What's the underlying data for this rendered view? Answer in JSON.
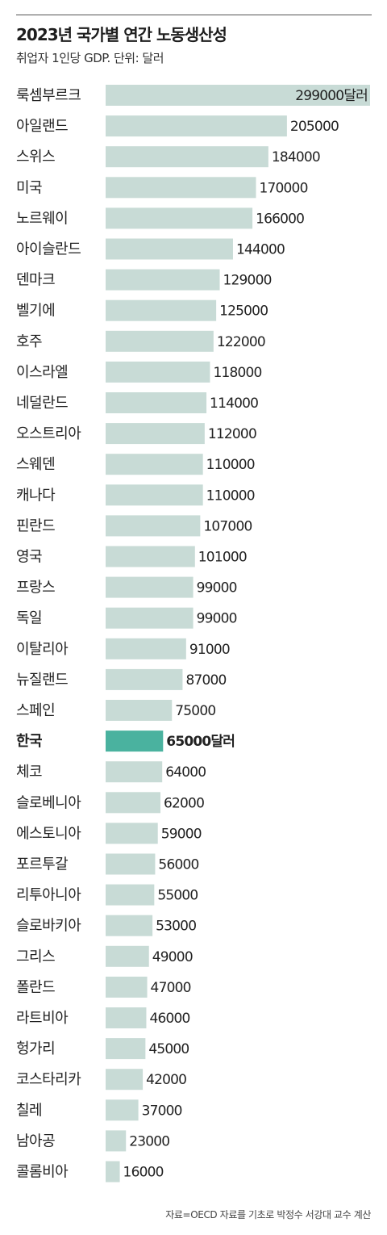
{
  "title": "2023년 국가별 연간 노동생산성",
  "subtitle": "취업자 1인당 GDP. 단위: 달러",
  "source": "자료=OECD 자료를 기초로 박정수 서강대 교수 계산",
  "colors": {
    "bar": "#c8dbd6",
    "highlight": "#4ab29f",
    "text": "#222222"
  },
  "chart_data": {
    "type": "bar",
    "orientation": "horizontal",
    "title": "2023년 국가별 연간 노동생산성",
    "subtitle": "취업자 1인당 GDP. 단위: 달러",
    "unit": "달러",
    "categories": [
      "룩셈부르크",
      "아일랜드",
      "스위스",
      "미국",
      "노르웨이",
      "아이슬란드",
      "덴마크",
      "벨기에",
      "호주",
      "이스라엘",
      "네덜란드",
      "오스트리아",
      "스웨덴",
      "캐나다",
      "핀란드",
      "영국",
      "프랑스",
      "독일",
      "이탈리아",
      "뉴질랜드",
      "스페인",
      "한국",
      "체코",
      "슬로베니아",
      "에스토니아",
      "포르투갈",
      "리투아니아",
      "슬로바키아",
      "그리스",
      "폴란드",
      "라트비아",
      "헝가리",
      "코스타리카",
      "칠레",
      "남아공",
      "콜롬비아"
    ],
    "values": [
      299000,
      205000,
      184000,
      170000,
      166000,
      144000,
      129000,
      125000,
      122000,
      118000,
      114000,
      112000,
      110000,
      110000,
      107000,
      101000,
      99000,
      99000,
      91000,
      87000,
      75000,
      65000,
      64000,
      62000,
      59000,
      56000,
      55000,
      53000,
      49000,
      47000,
      46000,
      45000,
      42000,
      37000,
      23000,
      16000
    ],
    "value_labels": [
      "299000달러",
      "205000",
      "184000",
      "170000",
      "166000",
      "144000",
      "129000",
      "125000",
      "122000",
      "118000",
      "114000",
      "112000",
      "110000",
      "110000",
      "107000",
      "101000",
      "99000",
      "99000",
      "91000",
      "87000",
      "75000",
      "65000달러",
      "64000",
      "62000",
      "59000",
      "56000",
      "55000",
      "53000",
      "49000",
      "47000",
      "46000",
      "45000",
      "42000",
      "37000",
      "23000",
      "16000"
    ],
    "highlight": "한국",
    "xlim": [
      0,
      299000
    ],
    "grid": false,
    "legend": "none"
  }
}
